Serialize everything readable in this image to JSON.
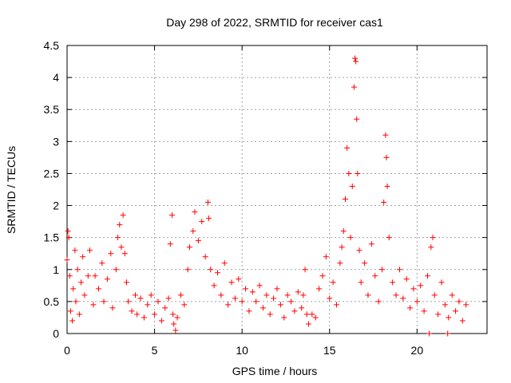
{
  "chart_data": {
    "type": "scatter",
    "title": "Day 298 of 2022, SRMTID for receiver cas1",
    "xlabel": "GPS time / hours",
    "ylabel": "SRMTID / TECUs",
    "xlim": [
      0,
      24
    ],
    "ylim": [
      0,
      4.5
    ],
    "x_ticks": [
      0,
      5,
      10,
      15,
      20
    ],
    "x_tick_labels": [
      "0",
      "5",
      "10",
      "15",
      "20"
    ],
    "y_ticks": [
      0,
      0.5,
      1,
      1.5,
      2,
      2.5,
      3,
      3.5,
      4,
      4.5
    ],
    "y_tick_labels": [
      "0",
      "0.5",
      "1",
      "1.5",
      "2",
      "2.5",
      "3",
      "3.5",
      "4",
      "4.5"
    ],
    "grid": true,
    "marker": "+",
    "color": "#ff0000",
    "series": [
      {
        "name": "SRMTID",
        "points": [
          [
            0.0,
            1.15
          ],
          [
            0.05,
            1.6
          ],
          [
            0.1,
            1.5
          ],
          [
            0.15,
            0.9
          ],
          [
            0.2,
            0.35
          ],
          [
            0.3,
            0.2
          ],
          [
            0.35,
            0.7
          ],
          [
            0.45,
            1.3
          ],
          [
            0.5,
            0.5
          ],
          [
            0.6,
            1.0
          ],
          [
            0.7,
            0.3
          ],
          [
            0.8,
            0.8
          ],
          [
            0.9,
            1.2
          ],
          [
            1.0,
            0.6
          ],
          [
            1.2,
            0.9
          ],
          [
            1.3,
            1.3
          ],
          [
            1.5,
            0.45
          ],
          [
            1.6,
            0.9
          ],
          [
            1.8,
            0.7
          ],
          [
            2.0,
            1.1
          ],
          [
            2.1,
            0.5
          ],
          [
            2.3,
            0.85
          ],
          [
            2.5,
            1.25
          ],
          [
            2.6,
            0.4
          ],
          [
            2.8,
            1.0
          ],
          [
            2.9,
            1.5
          ],
          [
            3.0,
            1.7
          ],
          [
            3.1,
            1.35
          ],
          [
            3.2,
            1.85
          ],
          [
            3.3,
            1.25
          ],
          [
            3.4,
            0.8
          ],
          [
            3.5,
            0.5
          ],
          [
            3.7,
            0.35
          ],
          [
            3.9,
            0.6
          ],
          [
            4.0,
            0.3
          ],
          [
            4.2,
            0.55
          ],
          [
            4.4,
            0.25
          ],
          [
            4.6,
            0.45
          ],
          [
            4.8,
            0.6
          ],
          [
            5.0,
            0.3
          ],
          [
            5.2,
            0.5
          ],
          [
            5.4,
            0.2
          ],
          [
            5.6,
            0.4
          ],
          [
            5.8,
            0.55
          ],
          [
            5.9,
            1.4
          ],
          [
            6.0,
            1.85
          ],
          [
            6.05,
            0.3
          ],
          [
            6.1,
            0.15
          ],
          [
            6.2,
            0.05
          ],
          [
            6.3,
            0.25
          ],
          [
            6.5,
            0.6
          ],
          [
            6.7,
            0.45
          ],
          [
            6.9,
            1.0
          ],
          [
            7.0,
            1.35
          ],
          [
            7.2,
            1.6
          ],
          [
            7.3,
            1.9
          ],
          [
            7.5,
            1.45
          ],
          [
            7.7,
            1.75
          ],
          [
            7.9,
            1.2
          ],
          [
            8.05,
            2.05
          ],
          [
            8.1,
            1.8
          ],
          [
            8.2,
            1.0
          ],
          [
            8.4,
            0.75
          ],
          [
            8.6,
            0.95
          ],
          [
            8.8,
            0.6
          ],
          [
            9.0,
            1.1
          ],
          [
            9.2,
            0.45
          ],
          [
            9.4,
            0.8
          ],
          [
            9.6,
            0.55
          ],
          [
            9.8,
            0.85
          ],
          [
            10.0,
            0.5
          ],
          [
            10.2,
            0.7
          ],
          [
            10.4,
            0.35
          ],
          [
            10.6,
            0.65
          ],
          [
            10.8,
            0.5
          ],
          [
            11.0,
            0.75
          ],
          [
            11.2,
            0.4
          ],
          [
            11.4,
            0.6
          ],
          [
            11.6,
            0.3
          ],
          [
            11.8,
            0.55
          ],
          [
            12.0,
            0.7
          ],
          [
            12.2,
            0.45
          ],
          [
            12.4,
            0.25
          ],
          [
            12.6,
            0.6
          ],
          [
            12.8,
            0.5
          ],
          [
            13.0,
            0.35
          ],
          [
            13.2,
            0.65
          ],
          [
            13.4,
            0.4
          ],
          [
            13.5,
            0.6
          ],
          [
            13.6,
            1.0
          ],
          [
            13.7,
            0.3
          ],
          [
            13.8,
            0.15
          ],
          [
            14.0,
            0.3
          ],
          [
            14.2,
            0.25
          ],
          [
            14.4,
            0.7
          ],
          [
            14.6,
            0.9
          ],
          [
            14.8,
            1.2
          ],
          [
            15.0,
            0.55
          ],
          [
            15.2,
            0.8
          ],
          [
            15.4,
            0.45
          ],
          [
            15.6,
            1.1
          ],
          [
            15.7,
            1.35
          ],
          [
            15.8,
            1.6
          ],
          [
            15.9,
            2.1
          ],
          [
            16.0,
            2.9
          ],
          [
            16.1,
            2.5
          ],
          [
            16.2,
            1.5
          ],
          [
            16.3,
            2.3
          ],
          [
            16.4,
            3.85
          ],
          [
            16.45,
            4.3
          ],
          [
            16.5,
            4.25
          ],
          [
            16.55,
            3.35
          ],
          [
            16.6,
            2.5
          ],
          [
            16.7,
            1.3
          ],
          [
            16.8,
            0.8
          ],
          [
            17.0,
            1.1
          ],
          [
            17.2,
            0.6
          ],
          [
            17.4,
            1.4
          ],
          [
            17.6,
            0.9
          ],
          [
            17.8,
            0.5
          ],
          [
            18.0,
            1.0
          ],
          [
            18.1,
            2.05
          ],
          [
            18.2,
            3.1
          ],
          [
            18.25,
            2.75
          ],
          [
            18.3,
            2.3
          ],
          [
            18.4,
            1.5
          ],
          [
            18.6,
            0.8
          ],
          [
            18.8,
            0.6
          ],
          [
            19.0,
            1.0
          ],
          [
            19.2,
            0.55
          ],
          [
            19.4,
            0.85
          ],
          [
            19.6,
            0.4
          ],
          [
            19.8,
            0.7
          ],
          [
            20.0,
            0.5
          ],
          [
            20.2,
            0.75
          ],
          [
            20.4,
            0.35
          ],
          [
            20.6,
            0.9
          ],
          [
            20.8,
            1.35
          ],
          [
            20.9,
            1.5
          ],
          [
            21.0,
            0.6
          ],
          [
            21.2,
            0.3
          ],
          [
            21.4,
            0.8
          ],
          [
            21.6,
            0.45
          ],
          [
            21.8,
            0.25
          ],
          [
            22.0,
            0.6
          ],
          [
            22.2,
            0.35
          ],
          [
            22.4,
            0.5
          ],
          [
            22.6,
            0.2
          ],
          [
            22.8,
            0.45
          ],
          [
            20.7,
            0.0
          ],
          [
            21.75,
            0.0
          ]
        ]
      }
    ]
  }
}
